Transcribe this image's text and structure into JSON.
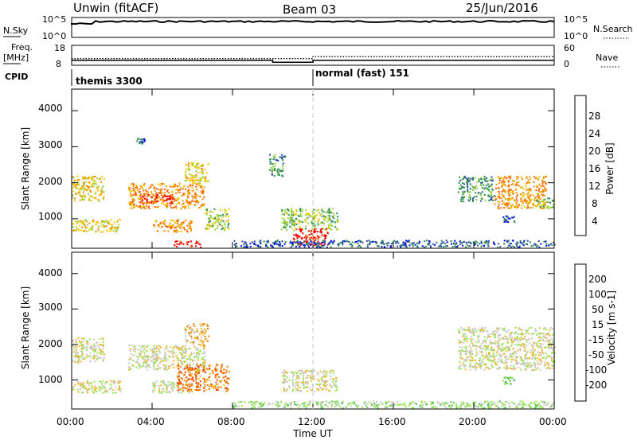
{
  "header": {
    "radar": "Unwin (fitACF)",
    "beam": "Beam 03",
    "date": "25/Jun/2016"
  },
  "nsky": {
    "label": "N.Sky",
    "ticks": [
      "10^5",
      "10^0"
    ],
    "right_label": "N.Search",
    "right_ticks": [
      "10^5",
      "10^0"
    ]
  },
  "freq": {
    "label_line1": "Freq.",
    "label_line2": "[MHz]",
    "left_ticks": [
      "18",
      "8"
    ],
    "right_label": "Nave",
    "right_ticks": [
      "60",
      "0"
    ]
  },
  "cpid": {
    "label": "CPID",
    "segments": [
      {
        "start": 0,
        "end": 12,
        "name": "themis 3300"
      },
      {
        "start": 12,
        "end": 24,
        "name": "normal (fast) 151"
      }
    ]
  },
  "power_panel": {
    "ylabel": "Slant Range [km]",
    "colorbar_label": "Power [dB]",
    "colorbar_ticks": [
      "28",
      "24",
      "20",
      "16",
      "12",
      "8",
      "4"
    ],
    "colors": [
      "#f00000",
      "#ff5a00",
      "#f08c00",
      "#f0c800",
      "#96d23c",
      "#288c50",
      "#2850a0",
      "#0000f0"
    ]
  },
  "velocity_panel": {
    "ylabel": "Slant Range [km]",
    "colorbar_label": "Velocity [m s-1]",
    "colorbar_ticks": [
      "200",
      "100",
      "50",
      "15",
      "-15",
      "-50",
      "-100",
      "-200"
    ],
    "colors": [
      "#2850c8",
      "#288c50",
      "#50c850",
      "#96e650",
      "#c8c8c0",
      "#f0b428",
      "#f07800",
      "#f03c00",
      "#f00000"
    ]
  },
  "axes": {
    "y_ticks": [
      "1000",
      "2000",
      "3000",
      "4000"
    ],
    "x_ticks": [
      "00:00",
      "04:00",
      "08:00",
      "12:00",
      "16:00",
      "20:00",
      "00:00"
    ],
    "xlabel": "Time UT"
  },
  "chart_data": {
    "type": "heatmap",
    "x_range_hours": [
      0,
      24
    ],
    "y_range_km": [
      180,
      4600
    ],
    "freq_mhz": [
      {
        "start": 0,
        "end": 10,
        "value": 10.5
      },
      {
        "start": 10,
        "end": 12,
        "value": 9.5
      },
      {
        "start": 12,
        "end": 24,
        "value": 10.5
      }
    ],
    "nave": [
      {
        "start": 0,
        "end": 12,
        "value": 20
      },
      {
        "start": 12,
        "end": 24,
        "value": 26
      }
    ],
    "power_blobs": [
      {
        "t0": 0.0,
        "t1": 1.6,
        "r0": 1500,
        "r1": 2200,
        "level": 3
      },
      {
        "t0": 0.0,
        "t1": 2.4,
        "r0": 650,
        "r1": 1000,
        "level": 3
      },
      {
        "t0": 2.8,
        "t1": 6.6,
        "r0": 1300,
        "r1": 2000,
        "level": 2
      },
      {
        "t0": 3.4,
        "t1": 5.0,
        "r0": 1450,
        "r1": 1700,
        "level": 0
      },
      {
        "t0": 4.0,
        "t1": 6.0,
        "r0": 650,
        "r1": 1000,
        "level": 2
      },
      {
        "t0": 5.0,
        "t1": 6.4,
        "r0": 180,
        "r1": 400,
        "level": 0
      },
      {
        "t0": 5.6,
        "t1": 6.8,
        "r0": 2000,
        "r1": 2600,
        "level": 3
      },
      {
        "t0": 6.6,
        "t1": 7.8,
        "r0": 700,
        "r1": 1300,
        "level": 4
      },
      {
        "t0": 9.8,
        "t1": 10.6,
        "r0": 2200,
        "r1": 2800,
        "level": 5
      },
      {
        "t0": 10.4,
        "t1": 13.2,
        "r0": 700,
        "r1": 1300,
        "level": 4
      },
      {
        "t0": 11.0,
        "t1": 12.8,
        "r0": 280,
        "r1": 750,
        "level": 0
      },
      {
        "t0": 8.0,
        "t1": 24.0,
        "r0": 180,
        "r1": 420,
        "level": 6
      },
      {
        "t0": 19.2,
        "t1": 21.0,
        "r0": 1500,
        "r1": 2200,
        "level": 5
      },
      {
        "t0": 21.0,
        "t1": 23.6,
        "r0": 1300,
        "r1": 2200,
        "level": 2
      },
      {
        "t0": 23.0,
        "t1": 24.0,
        "r0": 1300,
        "r1": 1600,
        "level": 4
      },
      {
        "t0": 21.4,
        "t1": 22.0,
        "r0": 900,
        "r1": 1100,
        "level": 6
      },
      {
        "t0": 3.2,
        "t1": 3.6,
        "r0": 3100,
        "r1": 3250,
        "level": 6
      }
    ],
    "velocity_blobs": [
      {
        "t0": 0.0,
        "t1": 1.6,
        "r0": 1500,
        "r1": 2200,
        "level": 4
      },
      {
        "t0": 0.0,
        "t1": 2.4,
        "r0": 650,
        "r1": 1000,
        "level": 4
      },
      {
        "t0": 2.8,
        "t1": 6.6,
        "r0": 1300,
        "r1": 2000,
        "level": 4
      },
      {
        "t0": 4.0,
        "t1": 6.0,
        "r0": 650,
        "r1": 1000,
        "level": 4
      },
      {
        "t0": 5.6,
        "t1": 6.8,
        "r0": 2000,
        "r1": 2600,
        "level": 5
      },
      {
        "t0": 5.2,
        "t1": 7.8,
        "r0": 700,
        "r1": 1450,
        "level": 6
      },
      {
        "t0": 10.4,
        "t1": 13.2,
        "r0": 700,
        "r1": 1300,
        "level": 4
      },
      {
        "t0": 8.0,
        "t1": 24.0,
        "r0": 180,
        "r1": 420,
        "level": 3
      },
      {
        "t0": 19.2,
        "t1": 24.0,
        "r0": 1300,
        "r1": 2500,
        "level": 4
      },
      {
        "t0": 21.4,
        "t1": 22.0,
        "r0": 900,
        "r1": 1100,
        "level": 2
      }
    ]
  }
}
